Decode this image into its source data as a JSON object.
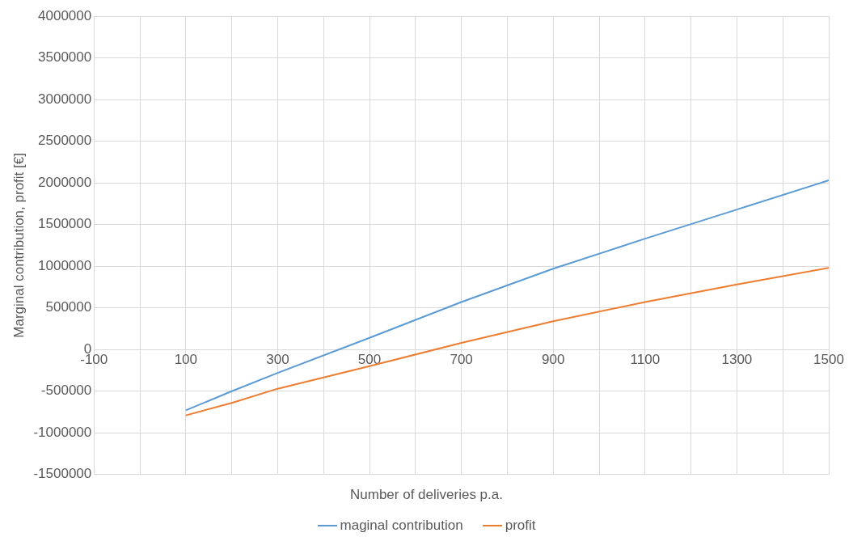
{
  "chart_data": {
    "type": "line",
    "xlabel": "Number of deliveries p.a.",
    "ylabel": "Marginal contribution, profit [€]",
    "xlim": [
      -100,
      1500
    ],
    "xticks": [
      {
        "value": -100,
        "label": "-100"
      },
      {
        "value": 0,
        "label": null
      },
      100,
      {
        "value": 200,
        "label": null
      },
      300,
      {
        "value": 400,
        "label": null
      },
      500,
      {
        "value": 600,
        "label": null
      },
      700,
      {
        "value": 800,
        "label": null
      },
      900,
      {
        "value": 1000,
        "label": null
      },
      1100,
      {
        "value": 1200,
        "label": null
      },
      1300,
      {
        "value": 1400,
        "label": null
      },
      1500
    ],
    "ylim": [
      -1500000,
      4000000
    ],
    "yticks": [
      -1500000,
      -1000000,
      -500000,
      0,
      500000,
      1000000,
      1500000,
      2000000,
      2500000,
      3000000,
      3500000,
      4000000
    ],
    "x": [
      100,
      200,
      300,
      500,
      700,
      900,
      1100,
      1300,
      1500
    ],
    "series": [
      {
        "name": "maginal contribution",
        "color": "#5b9bd5",
        "values": [
          -730000,
          -500000,
          -280000,
          140000,
          570000,
          970000,
          1330000,
          1680000,
          2030000
        ]
      },
      {
        "name": "profit",
        "color": "#ed7d31",
        "values": [
          -790000,
          -640000,
          -470000,
          -200000,
          80000,
          340000,
          570000,
          780000,
          980000
        ]
      }
    ],
    "grid": true,
    "legend": "bottom",
    "marker": "none",
    "line_style": "solid"
  }
}
